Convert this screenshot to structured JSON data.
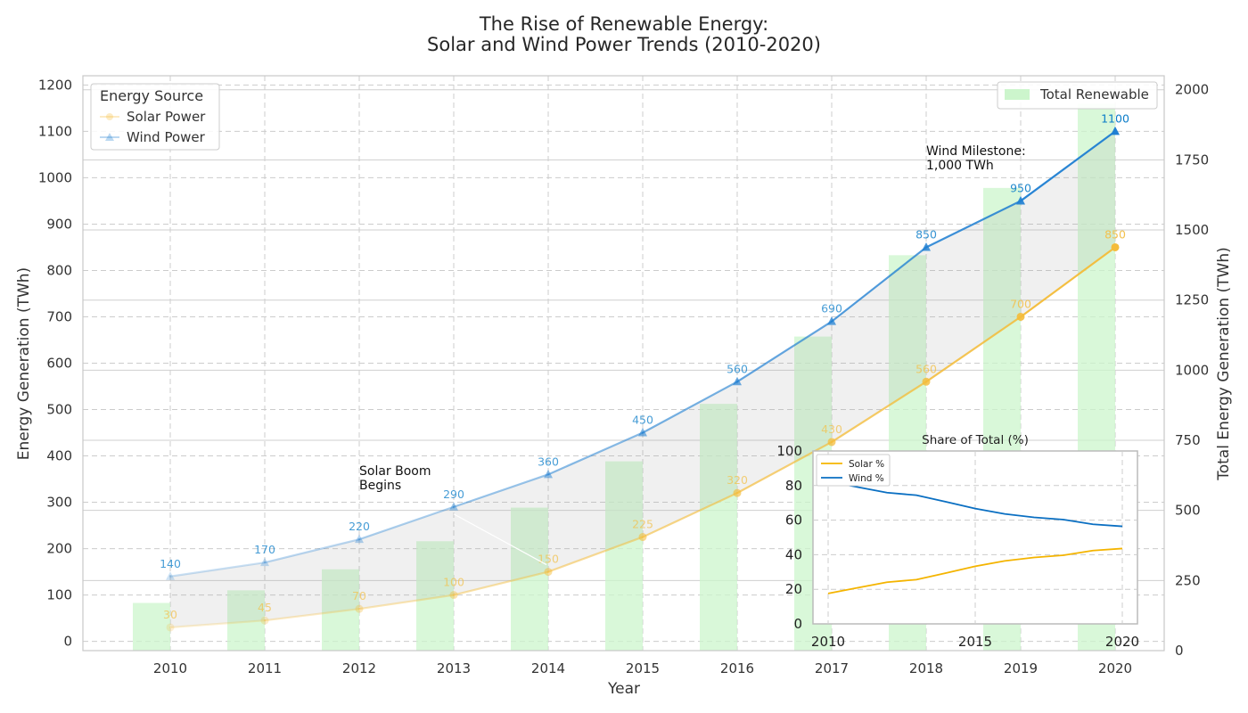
{
  "chart_data": [
    {
      "type": "line",
      "title": "The Rise of Renewable Energy:",
      "subtitle": "Solar and Wind Power Trends (2010-2020)",
      "xlabel": "Year",
      "ylabel": "Energy Generation (TWh)",
      "y2label": "Total Energy Generation (TWh)",
      "x": [
        2010,
        2011,
        2012,
        2013,
        2014,
        2015,
        2016,
        2017,
        2018,
        2019,
        2020
      ],
      "ylim": [
        -20,
        1220
      ],
      "y2lim": [
        0,
        2050
      ],
      "yticks": [
        0,
        100,
        200,
        300,
        400,
        500,
        600,
        700,
        800,
        900,
        1000,
        1100,
        1200
      ],
      "y2ticks": [
        0,
        250,
        500,
        750,
        1000,
        1250,
        1500,
        1750,
        2000
      ],
      "series": [
        {
          "name": "Solar Power",
          "values": [
            30,
            45,
            70,
            100,
            150,
            225,
            320,
            430,
            560,
            700,
            850
          ],
          "color": "#f4bc3a",
          "marker": "circle"
        },
        {
          "name": "Wind Power",
          "values": [
            140,
            170,
            220,
            290,
            360,
            450,
            560,
            690,
            850,
            950,
            1100
          ],
          "color": "#1f7fd2",
          "marker": "triangle"
        },
        {
          "name": "Total Renewable",
          "values": [
            170,
            215,
            290,
            390,
            510,
            675,
            880,
            1120,
            1410,
            1650,
            1950
          ],
          "color": "#ccf5cc",
          "type": "bar",
          "axis": "right"
        }
      ],
      "legend": {
        "title": "Energy Source",
        "entries": [
          "Solar Power",
          "Wind Power"
        ],
        "placement": "upper left"
      },
      "legend_right": {
        "entries": [
          "Total Renewable"
        ],
        "placement": "upper right"
      },
      "annotations": [
        {
          "lines": [
            "Solar Boom",
            "Begins"
          ],
          "x": 2013,
          "y": 150
        },
        {
          "lines": [
            "Wind Milestone:",
            "1,000 TWh"
          ],
          "x": 2018,
          "y": 1100
        }
      ],
      "grid": true
    },
    {
      "type": "line",
      "title": "Share of Total (%)",
      "x": [
        2010,
        2011,
        2012,
        2013,
        2014,
        2015,
        2016,
        2017,
        2018,
        2019,
        2020
      ],
      "xticks": [
        2010,
        2015,
        2020
      ],
      "ylim": [
        0,
        100
      ],
      "yticks": [
        0,
        20,
        40,
        60,
        80,
        100
      ],
      "series": [
        {
          "name": "Solar %",
          "values": [
            17.6,
            20.9,
            24.1,
            25.6,
            29.4,
            33.3,
            36.4,
            38.4,
            39.7,
            42.4,
            43.6
          ],
          "color": "#f4b400"
        },
        {
          "name": "Wind %",
          "values": [
            82.4,
            79.1,
            75.9,
            74.4,
            70.6,
            66.7,
            63.6,
            61.6,
            60.3,
            57.6,
            56.4
          ],
          "color": "#0a6fc2"
        }
      ],
      "legend_placement": "upper left",
      "grid": true
    }
  ]
}
